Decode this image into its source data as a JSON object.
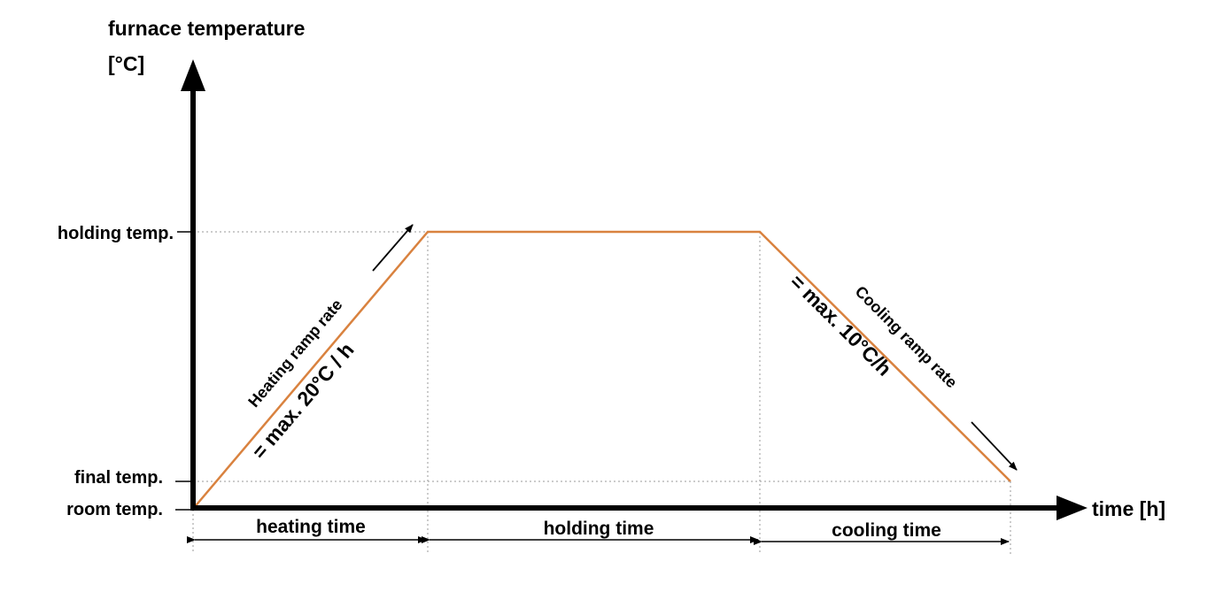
{
  "colors": {
    "profile": "#d9823f",
    "axis": "#000000",
    "guide": "#9a9a9a",
    "background": "#ffffff"
  },
  "y_axis": {
    "title_line1": "furnace temperature",
    "title_line2": "[°C]",
    "levels": {
      "holding": "holding temp.",
      "final": "final temp.",
      "room": "room temp."
    }
  },
  "x_axis": {
    "title": "time [h]"
  },
  "phases": {
    "heating": "heating time",
    "holding": "holding time",
    "cooling": "cooling time"
  },
  "ramps": {
    "heating_name": "Heating ramp rate",
    "heating_rate": "= max. 20°C / h",
    "cooling_name": "Cooling ramp rate",
    "cooling_rate": "= max. 10°C/h"
  }
}
